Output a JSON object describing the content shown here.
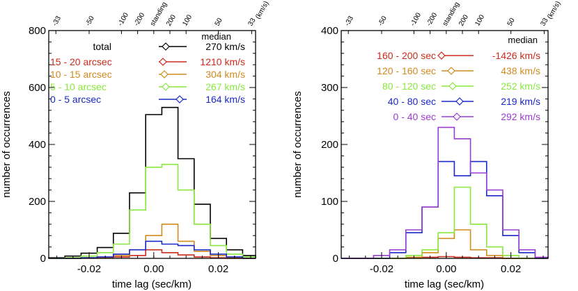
{
  "chart_data": [
    {
      "type": "histogram",
      "xlabel": "time lag  (sec/km)",
      "ylabel": "number of occurrences",
      "xlim": [
        -0.0325,
        0.0315
      ],
      "ylim": [
        0,
        800
      ],
      "xticks": [
        -0.02,
        0.0,
        0.02
      ],
      "xtick_labels": [
        "-0.02",
        "0.00",
        "0.02"
      ],
      "yticks": [
        0,
        200,
        400,
        600,
        800
      ],
      "ytick_labels": [
        "0",
        "200",
        "400",
        "600",
        "800"
      ],
      "top_axis": {
        "unit": "(km/s)",
        "ticks": [
          {
            "label": "-33",
            "x": -0.0303
          },
          {
            "label": "-50",
            "x": -0.02
          },
          {
            "label": "-100",
            "x": -0.01
          },
          {
            "label": "-200",
            "x": -0.005
          },
          {
            "label": "standing",
            "x": 0.0
          },
          {
            "label": "200",
            "x": 0.005
          },
          {
            "label": "100",
            "x": 0.01
          },
          {
            "label": "50",
            "x": 0.02
          },
          {
            "label": "33",
            "x": 0.0303
          }
        ]
      },
      "bin_edges": [
        -0.0325,
        -0.0275,
        -0.0225,
        -0.0175,
        -0.0125,
        -0.0075,
        -0.0025,
        0.0025,
        0.0075,
        0.0125,
        0.0175,
        0.0225,
        0.0275,
        0.0315
      ],
      "legend_header": "median",
      "series": [
        {
          "name": "total",
          "median": "270 km/s",
          "color": "#000000",
          "values": [
            2,
            8,
            18,
            38,
            88,
            230,
            505,
            530,
            350,
            190,
            70,
            30,
            10
          ]
        },
        {
          "name": "15 - 20 arcsec",
          "median": "1210 km/s",
          "color": "#cc2a1a",
          "values": [
            0,
            0,
            2,
            3,
            5,
            10,
            30,
            20,
            12,
            5,
            2,
            0,
            0
          ]
        },
        {
          "name": "10 - 15 arcsec",
          "median": "304 km/s",
          "color": "#d08a1e",
          "values": [
            0,
            0,
            2,
            4,
            10,
            30,
            80,
            120,
            60,
            25,
            10,
            3,
            0
          ]
        },
        {
          "name": "5 - 10 arcsec",
          "median": "267 km/s",
          "color": "#88e83c",
          "values": [
            0,
            2,
            8,
            20,
            50,
            170,
            320,
            330,
            240,
            120,
            45,
            15,
            5
          ]
        },
        {
          "name": "0 -  5 arcsec",
          "median": "164 km/s",
          "color": "#1a28c8",
          "values": [
            0,
            0,
            2,
            5,
            15,
            30,
            60,
            50,
            45,
            30,
            15,
            5,
            0
          ]
        }
      ]
    },
    {
      "type": "histogram",
      "xlabel": "time lag  (sec/km)",
      "ylabel": "number of occurrences",
      "xlim": [
        -0.0325,
        0.0315
      ],
      "ylim": [
        0,
        400
      ],
      "xticks": [
        -0.02,
        0.0,
        0.02
      ],
      "xtick_labels": [
        "-0.02",
        "0.00",
        "0.02"
      ],
      "yticks": [
        0,
        100,
        200,
        300,
        400
      ],
      "ytick_labels": [
        "0",
        "100",
        "200",
        "300",
        "400"
      ],
      "top_axis": {
        "unit": "(km/s)",
        "ticks": [
          {
            "label": "-33",
            "x": -0.0303
          },
          {
            "label": "-50",
            "x": -0.02
          },
          {
            "label": "-100",
            "x": -0.01
          },
          {
            "label": "-200",
            "x": -0.005
          },
          {
            "label": "standing",
            "x": 0.0
          },
          {
            "label": "200",
            "x": 0.005
          },
          {
            "label": "100",
            "x": 0.01
          },
          {
            "label": "50",
            "x": 0.02
          },
          {
            "label": "33",
            "x": 0.0303
          }
        ]
      },
      "bin_edges": [
        -0.0325,
        -0.0275,
        -0.0225,
        -0.0175,
        -0.0125,
        -0.0075,
        -0.0025,
        0.0025,
        0.0075,
        0.0125,
        0.0175,
        0.0225,
        0.0275,
        0.0315
      ],
      "legend_header": "median",
      "series": [
        {
          "name": "160 - 200 sec",
          "median": "-1426 km/s",
          "color": "#cc2a1a",
          "values": [
            0,
            0,
            0,
            0,
            1,
            2,
            3,
            2,
            1,
            1,
            0,
            0,
            0
          ]
        },
        {
          "name": "120 - 160 sec",
          "median": "438 km/s",
          "color": "#d08a1e",
          "values": [
            0,
            0,
            0,
            0,
            2,
            10,
            35,
            50,
            15,
            5,
            0,
            0,
            0
          ]
        },
        {
          "name": "80 - 120 sec",
          "median": "252 km/s",
          "color": "#88e83c",
          "values": [
            0,
            0,
            0,
            0,
            5,
            15,
            45,
            125,
            60,
            20,
            5,
            0,
            0
          ]
        },
        {
          "name": "40 -  80 sec",
          "median": "219 km/s",
          "color": "#1a28c8",
          "values": [
            0,
            0,
            0,
            10,
            45,
            90,
            170,
            145,
            170,
            110,
            40,
            10,
            0
          ]
        },
        {
          "name": "0 -  40 sec",
          "median": "292 km/s",
          "color": "#9a3cd0",
          "values": [
            0,
            0,
            5,
            15,
            50,
            90,
            230,
            210,
            150,
            120,
            50,
            15,
            2
          ]
        }
      ]
    }
  ]
}
